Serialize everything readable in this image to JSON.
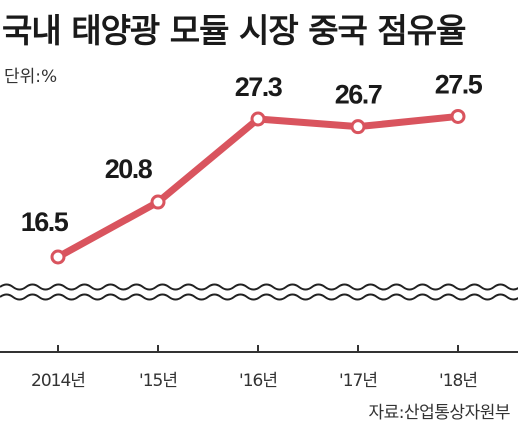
{
  "title": "국내 태양광 모듈 시장 중국 점유율",
  "unit_label": "단위:%",
  "source": "자료:산업통상자원부",
  "colors": {
    "line": "#d9545e",
    "marker_fill": "#ffffff",
    "axis": "#333333",
    "wave": "#222222"
  },
  "chart_data": {
    "type": "line",
    "title": "국내 태양광 모듈 시장 중국 점유율",
    "xlabel": "",
    "ylabel": "단위:%",
    "categories": [
      "2014년",
      "'15년",
      "'16년",
      "'17년",
      "'18년"
    ],
    "series": [
      {
        "values": [
          16.5,
          20.8,
          27.3,
          26.7,
          27.5
        ]
      }
    ],
    "data_labels": [
      "16.5",
      "20.8",
      "27.3",
      "26.7",
      "27.5"
    ],
    "ylim": [
      14,
      29
    ],
    "axis_break": true,
    "grid": false,
    "legend": "none"
  }
}
